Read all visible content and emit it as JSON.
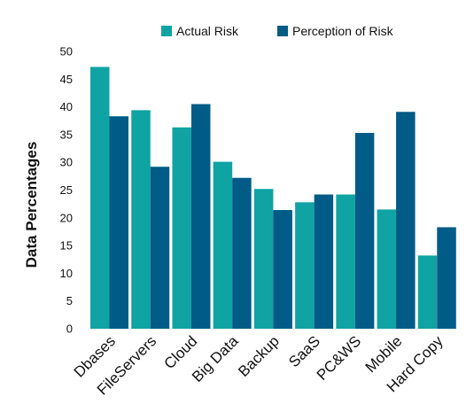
{
  "colors": {
    "actual": "#0fa3a3",
    "perception": "#005b86"
  },
  "chart_data": {
    "type": "bar",
    "title": "",
    "xlabel": "",
    "ylabel": "Data Percentages",
    "ylim": [
      0,
      50
    ],
    "yticks": [
      0,
      5,
      10,
      15,
      20,
      25,
      30,
      35,
      40,
      45,
      50
    ],
    "grid": false,
    "legend_position": "top-center",
    "categories": [
      "Dbases",
      "FileServers",
      "Cloud",
      "Big Data",
      "Backup",
      "SaaS",
      "PC&WS",
      "Mobile",
      "Hard Copy"
    ],
    "series": [
      {
        "name": "Actual Risk",
        "color": "#0fa3a3",
        "values": [
          47.2,
          39.4,
          36.3,
          30.1,
          25.2,
          22.8,
          24.2,
          21.5,
          13.2
        ]
      },
      {
        "name": "Perception of Risk",
        "color": "#005b86",
        "values": [
          38.3,
          29.2,
          40.5,
          27.2,
          21.4,
          24.2,
          35.3,
          39.1,
          18.3
        ]
      }
    ]
  }
}
